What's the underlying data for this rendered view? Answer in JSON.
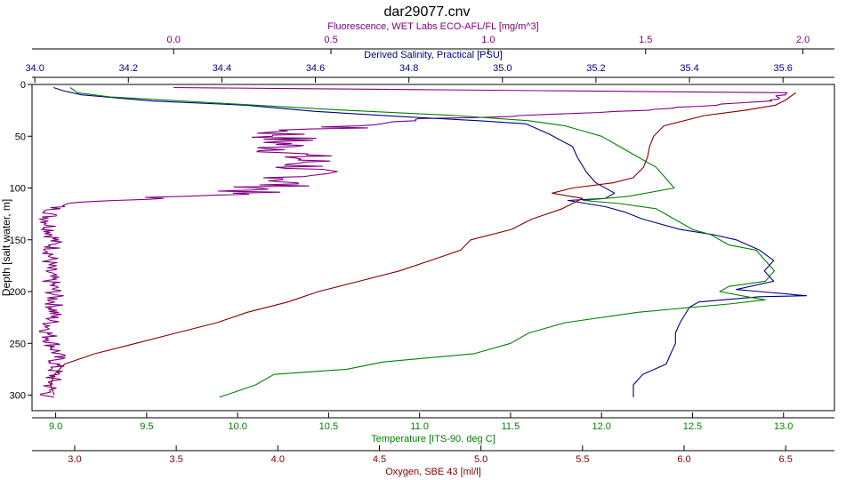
{
  "chart_data": {
    "type": "line",
    "title": "dar29077.cnv",
    "y_axis": {
      "label": "Depth [salt water, m]",
      "range": [
        0,
        315
      ],
      "reversed": true,
      "ticks": [
        0,
        50,
        100,
        150,
        200,
        250,
        300
      ]
    },
    "x_axes": [
      {
        "id": "fluorescence",
        "label": "Fluorescence, WET Labs ECO-AFL/FL [mg/m^3]",
        "position": "top",
        "color": "#800080",
        "range": [
          -0.45,
          2.1
        ],
        "ticks": [
          0.0,
          0.5,
          1.0,
          1.5,
          2.0
        ],
        "tick_labels": [
          "0.0",
          "0.5",
          "1.0",
          "1.5",
          "2.0"
        ]
      },
      {
        "id": "salinity",
        "label": "Derived Salinity, Practical [PSU]",
        "position": "top",
        "color": "#000080",
        "range": [
          33.994,
          35.71
        ],
        "ticks": [
          34.0,
          34.2,
          34.4,
          34.6,
          34.8,
          35.0,
          35.2,
          35.4,
          35.6
        ],
        "tick_labels": [
          "34.0",
          "34.2",
          "34.4",
          "34.6",
          "34.8",
          "35.0",
          "35.2",
          "35.4",
          "35.6"
        ]
      },
      {
        "id": "temperature",
        "label": "Temperature [ITS-90, deg C]",
        "position": "bottom",
        "color": "#008000",
        "range": [
          8.87,
          13.28
        ],
        "ticks": [
          9.0,
          9.5,
          10.0,
          10.5,
          11.0,
          11.5,
          12.0,
          12.5,
          13.0
        ],
        "tick_labels": [
          "9.0",
          "9.5",
          "10.0",
          "10.5",
          "11.0",
          "11.5",
          "12.0",
          "12.5",
          "13.0"
        ]
      },
      {
        "id": "oxygen",
        "label": "Oxygen, SBE 43 [ml/l]",
        "position": "bottom",
        "color": "#800000",
        "range": [
          2.79,
          6.74
        ],
        "ticks": [
          3.0,
          3.5,
          4.0,
          4.5,
          5.0,
          5.5,
          6.0,
          6.5
        ],
        "tick_labels": [
          "3.0",
          "3.5",
          "4.0",
          "4.5",
          "5.0",
          "5.5",
          "6.0",
          "6.5"
        ]
      }
    ],
    "grid": false,
    "legend": "none",
    "series": [
      {
        "axis": "fluorescence",
        "color": "#800080",
        "noise": 0.03,
        "points": [
          [
            0.0,
            3
          ],
          [
            1.95,
            8
          ],
          [
            1.92,
            15
          ],
          [
            1.5,
            25
          ],
          [
            1.05,
            31
          ],
          [
            0.8,
            33
          ],
          [
            0.6,
            40
          ],
          [
            0.35,
            45
          ],
          [
            0.35,
            60
          ],
          [
            0.42,
            75
          ],
          [
            0.4,
            90
          ],
          [
            0.3,
            100
          ],
          [
            0.2,
            105
          ],
          [
            -0.05,
            110
          ],
          [
            -0.35,
            115
          ],
          [
            -0.38,
            120
          ],
          [
            -0.4,
            130
          ],
          [
            -0.38,
            150
          ],
          [
            -0.4,
            180
          ],
          [
            -0.38,
            200
          ],
          [
            -0.38,
            220
          ],
          [
            -0.4,
            240
          ],
          [
            -0.37,
            260
          ],
          [
            -0.38,
            280
          ],
          [
            -0.4,
            300
          ],
          [
            -0.38,
            302
          ]
        ]
      },
      {
        "axis": "salinity",
        "color": "#000080",
        "points": [
          [
            34.04,
            3
          ],
          [
            34.06,
            6
          ],
          [
            34.1,
            10
          ],
          [
            34.25,
            16
          ],
          [
            34.45,
            20
          ],
          [
            34.6,
            26
          ],
          [
            34.78,
            31
          ],
          [
            34.95,
            35
          ],
          [
            35.05,
            38
          ],
          [
            35.1,
            48
          ],
          [
            35.15,
            60
          ],
          [
            35.16,
            70
          ],
          [
            35.18,
            85
          ],
          [
            35.2,
            95
          ],
          [
            35.24,
            105
          ],
          [
            35.22,
            110
          ],
          [
            35.14,
            112
          ],
          [
            35.22,
            118
          ],
          [
            35.26,
            123
          ],
          [
            35.3,
            130
          ],
          [
            35.38,
            140
          ],
          [
            35.45,
            145
          ],
          [
            35.5,
            150
          ],
          [
            35.55,
            160
          ],
          [
            35.58,
            170
          ],
          [
            35.56,
            180
          ],
          [
            35.58,
            190
          ],
          [
            35.5,
            198
          ],
          [
            35.55,
            200
          ],
          [
            35.65,
            204
          ],
          [
            35.55,
            205
          ],
          [
            35.42,
            210
          ],
          [
            35.4,
            215
          ],
          [
            35.38,
            230
          ],
          [
            35.37,
            240
          ],
          [
            35.37,
            250
          ],
          [
            35.36,
            260
          ],
          [
            35.35,
            270
          ],
          [
            35.3,
            280
          ],
          [
            35.28,
            290
          ],
          [
            35.28,
            302
          ]
        ]
      },
      {
        "axis": "temperature",
        "color": "#008000",
        "points": [
          [
            9.08,
            3
          ],
          [
            9.12,
            8
          ],
          [
            9.3,
            12
          ],
          [
            9.9,
            18
          ],
          [
            10.6,
            25
          ],
          [
            11.2,
            30
          ],
          [
            11.6,
            35
          ],
          [
            11.8,
            40
          ],
          [
            11.9,
            45
          ],
          [
            12.0,
            50
          ],
          [
            12.1,
            60
          ],
          [
            12.2,
            70
          ],
          [
            12.3,
            80
          ],
          [
            12.35,
            90
          ],
          [
            12.4,
            100
          ],
          [
            12.15,
            108
          ],
          [
            11.9,
            112
          ],
          [
            12.1,
            115
          ],
          [
            12.3,
            120
          ],
          [
            12.35,
            125
          ],
          [
            12.4,
            130
          ],
          [
            12.5,
            140
          ],
          [
            12.6,
            145
          ],
          [
            12.7,
            155
          ],
          [
            12.85,
            160
          ],
          [
            12.9,
            170
          ],
          [
            12.95,
            180
          ],
          [
            12.9,
            190
          ],
          [
            12.7,
            195
          ],
          [
            12.65,
            200
          ],
          [
            12.8,
            205
          ],
          [
            12.9,
            208
          ],
          [
            12.7,
            212
          ],
          [
            12.2,
            220
          ],
          [
            11.8,
            230
          ],
          [
            11.6,
            240
          ],
          [
            11.5,
            250
          ],
          [
            11.3,
            260
          ],
          [
            10.8,
            268
          ],
          [
            10.6,
            275
          ],
          [
            10.2,
            280
          ],
          [
            10.1,
            290
          ],
          [
            9.9,
            302
          ]
        ]
      },
      {
        "axis": "oxygen",
        "color": "#800000",
        "points": [
          [
            6.55,
            8
          ],
          [
            6.5,
            15
          ],
          [
            6.45,
            20
          ],
          [
            6.3,
            25
          ],
          [
            6.1,
            30
          ],
          [
            5.9,
            40
          ],
          [
            5.85,
            50
          ],
          [
            5.83,
            60
          ],
          [
            5.82,
            70
          ],
          [
            5.8,
            80
          ],
          [
            5.75,
            90
          ],
          [
            5.65,
            95
          ],
          [
            5.45,
            100
          ],
          [
            5.35,
            105
          ],
          [
            5.5,
            110
          ],
          [
            5.4,
            120
          ],
          [
            5.25,
            130
          ],
          [
            5.15,
            140
          ],
          [
            4.95,
            150
          ],
          [
            4.9,
            160
          ],
          [
            4.75,
            170
          ],
          [
            4.6,
            180
          ],
          [
            4.4,
            190
          ],
          [
            4.2,
            200
          ],
          [
            4.05,
            210
          ],
          [
            3.85,
            220
          ],
          [
            3.7,
            230
          ],
          [
            3.5,
            240
          ],
          [
            3.3,
            250
          ],
          [
            3.1,
            260
          ],
          [
            2.95,
            270
          ],
          [
            2.9,
            280
          ],
          [
            2.88,
            290
          ],
          [
            2.9,
            300
          ]
        ]
      }
    ]
  }
}
